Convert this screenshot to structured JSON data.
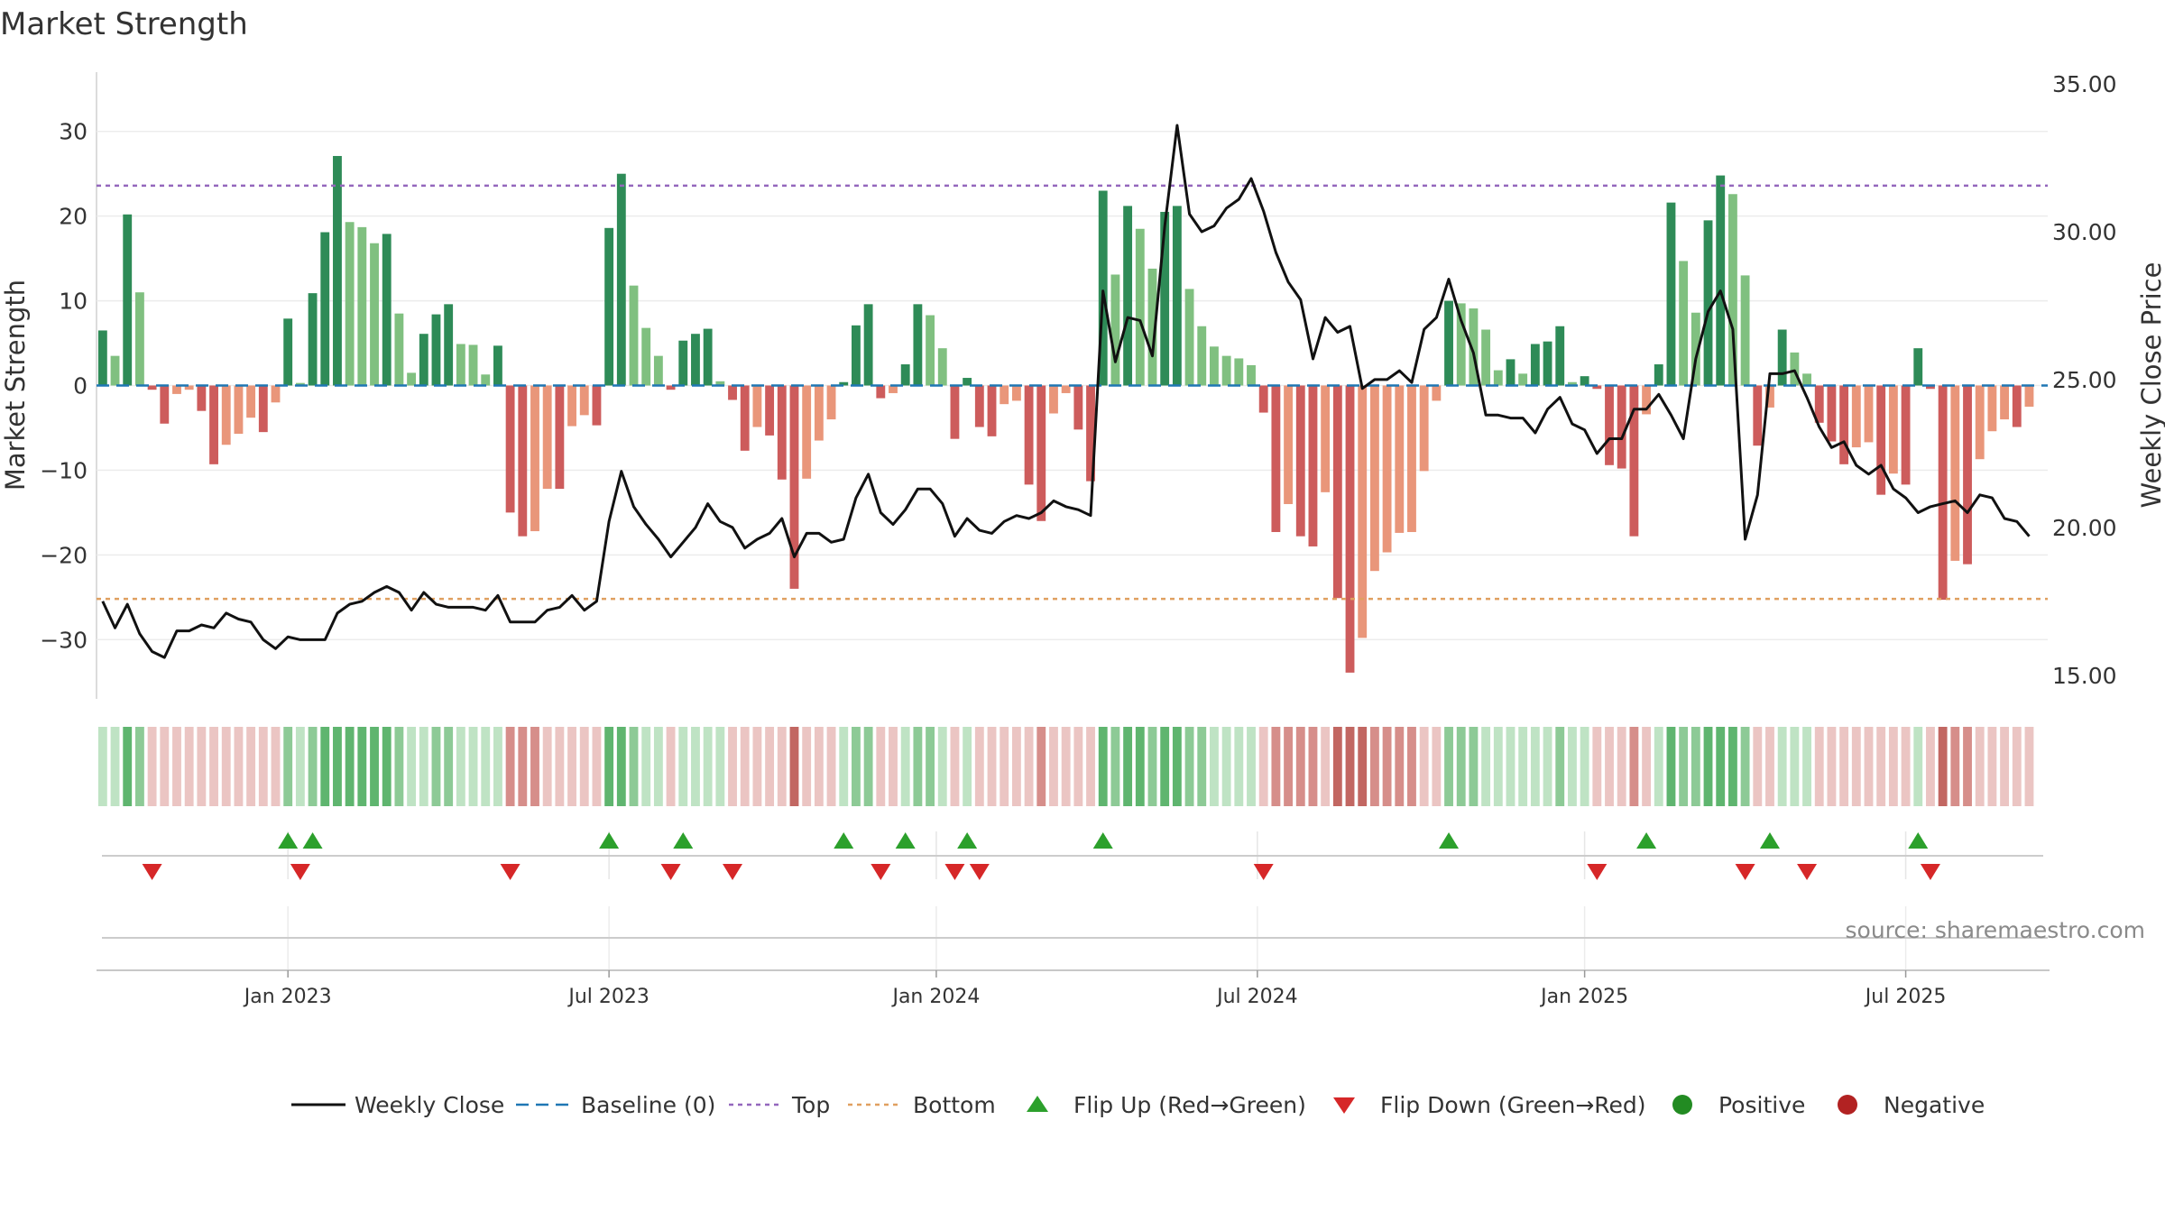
{
  "chart_data": {
    "type": "bar",
    "title": "Market Strength",
    "ylabel_left": "Market Strength",
    "ylabel_right": "Weekly Close Price",
    "source": "source: sharemaestro.com",
    "left_axis": {
      "ylim": [
        -37,
        37
      ],
      "ticks": [
        30,
        20,
        10,
        0,
        -10,
        -20,
        -30
      ],
      "tick_labels": [
        "30",
        "20",
        "10",
        "0",
        "−10",
        "−20",
        "−30"
      ]
    },
    "right_axis": {
      "ylim": [
        14.2,
        35.4
      ],
      "ticks": [
        35,
        30,
        25,
        20,
        15
      ],
      "tick_labels": [
        "35.00",
        "30.00",
        "25.00",
        "20.00",
        "15.00"
      ]
    },
    "x_axis": {
      "week_range": [
        0,
        157
      ],
      "ticks": [
        15,
        41,
        67.5,
        93.5,
        120,
        146
      ],
      "tick_labels": [
        "Jan 2023",
        "Jul 2023",
        "Jan 2024",
        "Jul 2024",
        "Jan 2025",
        "Jul 2025"
      ]
    },
    "top_level": 23.6,
    "bottom_level": -25.2,
    "strength": [
      6.5,
      3.5,
      20.2,
      11,
      -0.5,
      -4.5,
      -1,
      -0.5,
      -3,
      -9.3,
      -7,
      -5.7,
      -3.8,
      -5.5,
      -2,
      7.9,
      0.3,
      10.9,
      18.1,
      27.1,
      19.3,
      18.7,
      16.8,
      17.9,
      8.5,
      1.5,
      6.1,
      8.4,
      9.6,
      4.9,
      4.8,
      1.3,
      4.7,
      -15,
      -17.8,
      -17.2,
      -12.2,
      -12.2,
      -4.8,
      -3.5,
      -4.7,
      18.6,
      25,
      11.8,
      6.8,
      3.5,
      -0.5,
      5.3,
      6.1,
      6.7,
      0.5,
      -1.7,
      -7.7,
      -4.9,
      -5.9,
      -11.1,
      -24,
      -11,
      -6.5,
      -4,
      0.4,
      7.1,
      9.6,
      -1.5,
      -0.9,
      2.5,
      9.6,
      8.3,
      4.4,
      -6.3,
      0.9,
      -4.9,
      -6,
      -2.2,
      -1.8,
      -11.7,
      -16,
      -3.3,
      -0.9,
      -5.2,
      -11.3,
      23,
      13.1,
      21.2,
      18.5,
      13.8,
      20.5,
      21.2,
      11.4,
      7,
      4.6,
      3.5,
      3.2,
      2.4,
      -3.2,
      -17.3,
      -14,
      -17.8,
      -19,
      -12.6,
      -25.1,
      -33.9,
      -29.8,
      -21.9,
      -19.7,
      -17.4,
      -17.3,
      -10.1,
      -1.8,
      10,
      9.7,
      9.1,
      6.6,
      1.8,
      3.1,
      1.4,
      4.9,
      5.2,
      7,
      0.4,
      1.1,
      -0.4,
      -9.4,
      -9.8,
      -17.8,
      -3.4,
      2.5,
      21.6,
      14.7,
      8.6,
      19.5,
      24.8,
      22.6,
      13,
      -7.1,
      -2.6,
      6.6,
      3.9,
      1.4,
      -4.4,
      -6.6,
      -9.3,
      -7.3,
      -6.7,
      -12.9,
      -10.4,
      -11.7,
      4.4,
      -0.4,
      -25.3,
      -20.7,
      -21.1,
      -8.7,
      -5.4,
      -4,
      -4.9,
      -2.5
    ],
    "close": [
      17.5,
      16.6,
      17.4,
      16.4,
      15.8,
      15.6,
      16.5,
      16.5,
      16.7,
      16.6,
      17.1,
      16.9,
      16.8,
      16.2,
      15.9,
      16.3,
      16.2,
      16.2,
      16.2,
      17.1,
      17.4,
      17.5,
      17.8,
      18.0,
      17.8,
      17.2,
      17.8,
      17.4,
      17.3,
      17.3,
      17.3,
      17.2,
      17.7,
      16.8,
      16.8,
      16.8,
      17.2,
      17.3,
      17.7,
      17.2,
      17.5,
      20.2,
      21.9,
      20.7,
      20.1,
      19.6,
      19.0,
      19.5,
      20.0,
      20.8,
      20.2,
      20.0,
      19.3,
      19.6,
      19.8,
      20.3,
      19.0,
      19.8,
      19.8,
      19.5,
      19.6,
      21.0,
      21.8,
      20.5,
      20.1,
      20.6,
      21.3,
      21.3,
      20.8,
      19.7,
      20.3,
      19.9,
      19.8,
      20.2,
      20.4,
      20.3,
      20.5,
      20.9,
      20.7,
      20.6,
      20.4,
      28.0,
      25.6,
      27.1,
      27.0,
      25.8,
      30.2,
      33.6,
      30.6,
      30.0,
      30.2,
      30.8,
      31.1,
      31.8,
      30.7,
      29.3,
      28.3,
      27.7,
      25.7,
      27.1,
      26.6,
      26.8,
      24.7,
      25.0,
      25.0,
      25.3,
      24.9,
      26.7,
      27.1,
      28.4,
      27.0,
      25.9,
      23.8,
      23.8,
      23.7,
      23.7,
      23.2,
      24.0,
      24.4,
      23.5,
      23.3,
      22.5,
      23.0,
      23.0,
      24.0,
      24.0,
      24.5,
      23.8,
      23.0,
      25.7,
      27.3,
      28.0,
      26.7,
      19.6,
      21.1,
      25.2,
      25.2,
      25.3,
      24.4,
      23.4,
      22.7,
      22.9,
      22.1,
      21.8,
      22.1,
      21.3,
      21.0,
      20.5,
      20.7,
      20.8,
      20.9,
      20.5,
      21.1,
      21.0,
      20.3,
      20.2,
      19.7
    ],
    "flip_up_weeks": [
      15,
      17,
      41,
      47,
      60,
      65,
      70,
      81,
      109,
      125,
      135,
      147
    ],
    "flip_down_weeks": [
      4,
      16,
      33,
      46,
      51,
      63,
      69,
      71,
      94,
      121,
      133,
      138,
      148
    ],
    "legend": [
      "Weekly Close",
      "Baseline (0)",
      "Top",
      "Bottom",
      "Flip Up (Red→Green)",
      "Flip Down (Green→Red)",
      "Positive",
      "Negative"
    ],
    "colors": {
      "strong_pos": "#2e8b57",
      "weak_pos": "#80c080",
      "strong_neg": "#cd5c5c",
      "weak_neg": "#e9967a",
      "close_line": "#111111",
      "baseline": "#1f77b4",
      "top_line": "#9467bd",
      "bottom_line": "#e0a060",
      "flip_up": "#2ca02c",
      "flip_down": "#d62728",
      "positive_dot": "#228b22",
      "negative_dot": "#b22222",
      "grid": "#ececec",
      "axis_text": "#333333"
    }
  }
}
